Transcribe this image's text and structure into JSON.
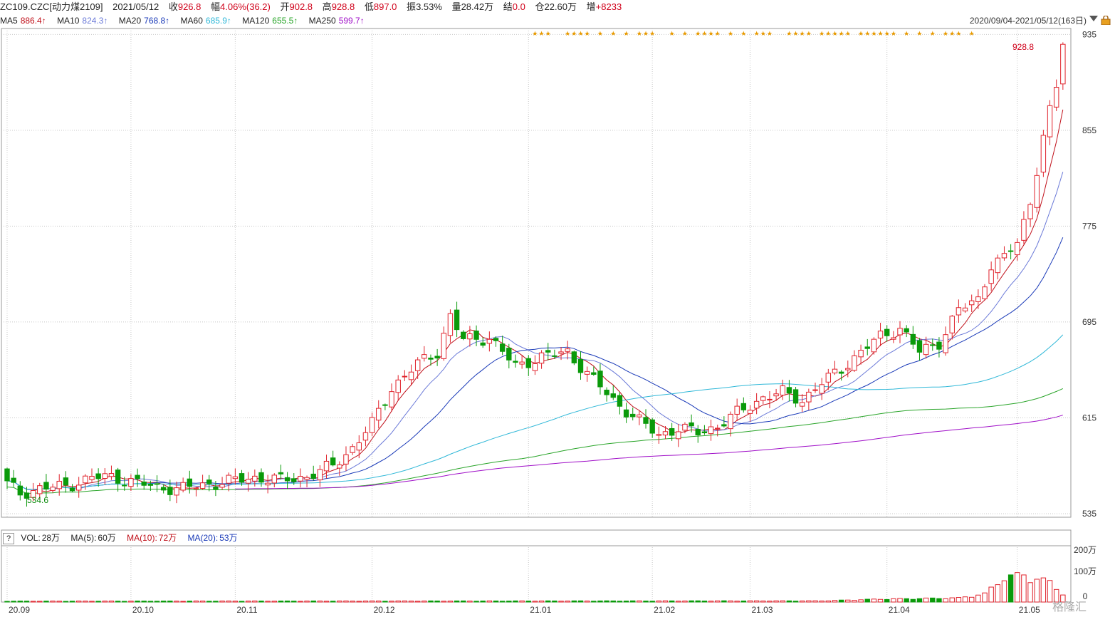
{
  "header": {
    "symbol": "ZC109.CZC[动力煤2109]",
    "date": "2021/05/12",
    "close_label": "收",
    "close": "926.8",
    "change_label": "幅",
    "change": "4.06%(36.2)",
    "open_label": "开",
    "open": "902.8",
    "high_label": "高",
    "high": "928.8",
    "low_label": "低",
    "low": "897.0",
    "amplitude_label": "振",
    "amplitude": "3.53%",
    "volume_label": "量",
    "volume": "28.42万",
    "settle_label": "结",
    "settle": "0.0",
    "oi_label": "仓",
    "oi": "22.60万",
    "oi_change_label": "增",
    "oi_change": "+8233"
  },
  "ma_bar": {
    "ma5_label": "MA5",
    "ma5": "886.4↑",
    "ma10_label": "MA10",
    "ma10": "824.3↑",
    "ma20_label": "MA20",
    "ma20": "768.8↑",
    "ma60_label": "MA60",
    "ma60": "685.9↑",
    "ma120_label": "MA120",
    "ma120": "655.5↑",
    "ma250_label": "MA250",
    "ma250": "599.7↑"
  },
  "range_text": "2020/09/04-2021/05/12(163日)",
  "vol_bar": {
    "help": "?",
    "vol_label": "VOL:",
    "vol": "28万",
    "ma5_label": "MA(5):",
    "ma5": "60万",
    "ma10_label": "MA(10):",
    "ma10": "72万",
    "ma20_label": "MA(20):",
    "ma20": "53万"
  },
  "watermark": "格隆汇",
  "colors": {
    "up": "#e0222b",
    "down": "#0a9a0a",
    "ma5": "#c0101a",
    "ma10": "#6b7ad8",
    "ma20": "#1a3ab8",
    "ma60": "#30b8d8",
    "ma120": "#2aa52a",
    "ma250": "#a010c8",
    "grid": "#c8c8c8",
    "star": "#e89a00"
  },
  "chart_data": {
    "type": "candlestick",
    "ylim": [
      532,
      940
    ],
    "y_ticks": [
      535,
      615,
      695,
      775,
      855,
      935
    ],
    "x_tick_labels": [
      "20.09",
      "20.10",
      "20.11",
      "20.12",
      "21.01",
      "21.02",
      "21.03",
      "21.04",
      "21.05"
    ],
    "x_tick_index": [
      0,
      19,
      35,
      56,
      80,
      99,
      114,
      135,
      155
    ],
    "high_label": "928.8",
    "low_label": "534.6",
    "n_bars": 163,
    "close_anchors": [
      [
        0,
        560
      ],
      [
        2,
        552
      ],
      [
        5,
        556
      ],
      [
        9,
        558
      ],
      [
        13,
        565
      ],
      [
        16,
        566
      ],
      [
        19,
        562
      ],
      [
        23,
        557
      ],
      [
        27,
        556
      ],
      [
        31,
        560
      ],
      [
        34,
        562
      ],
      [
        38,
        565
      ],
      [
        42,
        563
      ],
      [
        46,
        566
      ],
      [
        50,
        575
      ],
      [
        53,
        590
      ],
      [
        56,
        610
      ],
      [
        59,
        640
      ],
      [
        63,
        660
      ],
      [
        66,
        670
      ],
      [
        68,
        700
      ],
      [
        70,
        680
      ],
      [
        74,
        682
      ],
      [
        78,
        658
      ],
      [
        82,
        666
      ],
      [
        86,
        670
      ],
      [
        89,
        652
      ],
      [
        93,
        630
      ],
      [
        97,
        612
      ],
      [
        100,
        601
      ],
      [
        103,
        606
      ],
      [
        106,
        603
      ],
      [
        109,
        608
      ],
      [
        112,
        619
      ],
      [
        116,
        632
      ],
      [
        119,
        636
      ],
      [
        122,
        630
      ],
      [
        125,
        644
      ],
      [
        128,
        656
      ],
      [
        131,
        670
      ],
      [
        134,
        683
      ],
      [
        137,
        690
      ],
      [
        140,
        670
      ],
      [
        143,
        678
      ],
      [
        146,
        705
      ],
      [
        149,
        714
      ],
      [
        151,
        743
      ],
      [
        153,
        748
      ],
      [
        155,
        762
      ],
      [
        157,
        795
      ],
      [
        159,
        850
      ],
      [
        161,
        890
      ],
      [
        162,
        926.8
      ]
    ],
    "volume_ylim": [
      0,
      200
    ],
    "volume_ticks": [
      "200万",
      "100万",
      "0"
    ],
    "volume_anchors": [
      [
        0,
        3
      ],
      [
        125,
        4
      ],
      [
        134,
        10
      ],
      [
        140,
        12
      ],
      [
        146,
        14
      ],
      [
        150,
        28
      ],
      [
        153,
        85
      ],
      [
        156,
        92
      ],
      [
        158,
        80
      ],
      [
        160,
        68
      ],
      [
        162,
        28
      ]
    ],
    "ma_series": [
      {
        "name": "MA5",
        "period": 5
      },
      {
        "name": "MA10",
        "period": 10
      },
      {
        "name": "MA20",
        "period": 20
      },
      {
        "name": "MA60",
        "period": 60
      },
      {
        "name": "MA120",
        "period": 120
      },
      {
        "name": "MA250",
        "period": 250
      }
    ],
    "star_groups": [
      [
        81,
        83
      ],
      [
        86,
        89
      ],
      [
        91,
        91
      ],
      [
        93,
        93
      ],
      [
        95,
        95
      ],
      [
        97,
        99
      ],
      [
        102,
        102
      ],
      [
        104,
        104
      ],
      [
        106,
        109
      ],
      [
        111,
        111
      ],
      [
        113,
        113
      ],
      [
        115,
        117
      ],
      [
        120,
        122
      ],
      [
        123,
        123
      ],
      [
        125,
        129
      ],
      [
        131,
        136
      ],
      [
        138,
        138
      ],
      [
        140,
        140
      ],
      [
        142,
        142
      ],
      [
        144,
        146
      ],
      [
        148,
        148
      ]
    ]
  }
}
